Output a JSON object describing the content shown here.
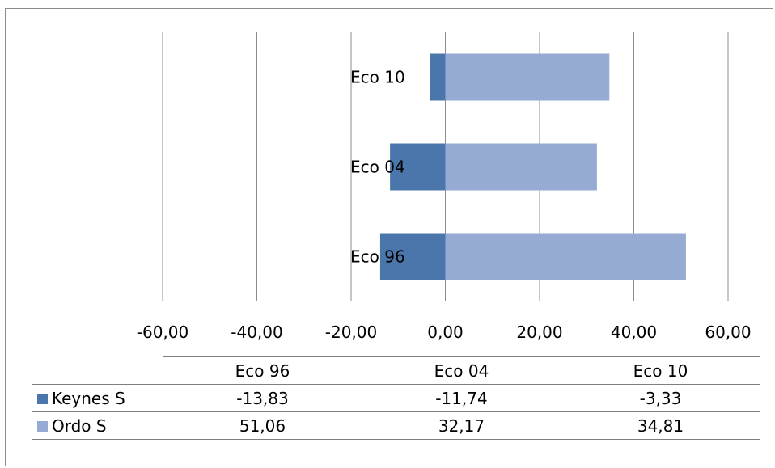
{
  "chart_data": {
    "type": "bar",
    "orientation": "horizontal",
    "stacked": true,
    "categories": [
      "Eco 96",
      "Eco 04",
      "Eco 10"
    ],
    "series": [
      {
        "name": "Keynes S",
        "values": [
          -13.83,
          -11.74,
          -3.33
        ],
        "color": "#4a76ab"
      },
      {
        "name": "Ordo S",
        "values": [
          51.06,
          32.17,
          34.81
        ],
        "color": "#95abd3"
      }
    ],
    "xlim": [
      -60,
      60
    ],
    "x_ticks": [
      -60,
      -40,
      -20,
      0,
      20,
      40,
      60
    ],
    "x_tick_labels": [
      "-60,00",
      "-40,00",
      "-20,00",
      "0,00",
      "20,00",
      "40,00",
      "60,00"
    ],
    "grid": "vertical",
    "legend": "data-table-below",
    "title": "",
    "xlabel": "",
    "ylabel": ""
  },
  "table": {
    "headers": [
      "Eco 96",
      "Eco 04",
      "Eco 10"
    ],
    "rows": [
      {
        "label": "Keynes S",
        "color": "#4a76ab",
        "values": [
          "-13,83",
          "-11,74",
          "-3,33"
        ]
      },
      {
        "label": "Ordo S",
        "color": "#95abd3",
        "values": [
          "51,06",
          "32,17",
          "34,81"
        ]
      }
    ]
  }
}
